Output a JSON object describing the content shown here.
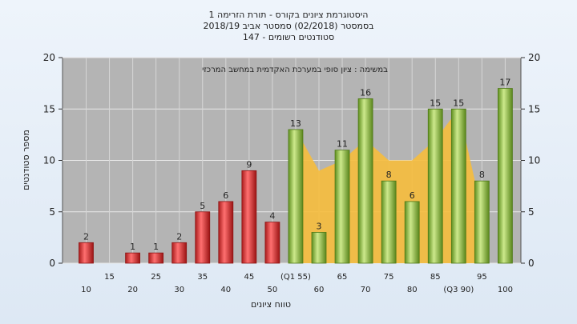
{
  "chart_data": {
    "type": "bar",
    "title_lines": [
      "היסטוגרמת ציונים בקורס - תורת הזרימה 1",
      "בסמסטר  (02/2018)  סמסטר אביב 2018/19",
      "סטודנטים רשומים - 147"
    ],
    "annotation": "במשימה : ציון סופי במערכת האקדמית במחשב המרכזי",
    "ylabel": "מספר סטודנטים",
    "xlabel": "טווח ציונים",
    "ylim": [
      0,
      20
    ],
    "yticks": [
      0,
      5,
      10,
      15,
      20
    ],
    "categories": [
      "10",
      "15",
      "20",
      "25",
      "30",
      "35",
      "40",
      "45",
      "50",
      "55",
      "60",
      "65",
      "70",
      "75",
      "80",
      "85",
      "90",
      "95",
      "100"
    ],
    "category_labels": [
      "10",
      "15",
      "20",
      "25",
      "30",
      "35",
      "40",
      "45",
      "50",
      "(Q1 55)",
      "60",
      "65",
      "70",
      "75",
      "80",
      "85",
      "(Q3 90)",
      "95",
      "100"
    ],
    "values": [
      2,
      0,
      1,
      1,
      2,
      5,
      6,
      9,
      4,
      13,
      3,
      11,
      16,
      8,
      6,
      15,
      15,
      8,
      17
    ],
    "bar_groups": [
      "red",
      "red",
      "red",
      "red",
      "red",
      "red",
      "red",
      "red",
      "red",
      "green",
      "green",
      "green",
      "green",
      "green",
      "green",
      "green",
      "green",
      "green",
      "green"
    ],
    "area_values": [
      13,
      9,
      10,
      12,
      10,
      10,
      12,
      15,
      5
    ],
    "area_start_index": 9,
    "colors": {
      "red": "#d92f2f",
      "red_light": "#f49a9a",
      "red_dark": "#8e1414",
      "green": "#8fc23d",
      "green_light": "#d6ef9c",
      "green_dark": "#4f7a17",
      "area": "#f6bd3c",
      "plot_bg": "#b4b4b4"
    }
  }
}
